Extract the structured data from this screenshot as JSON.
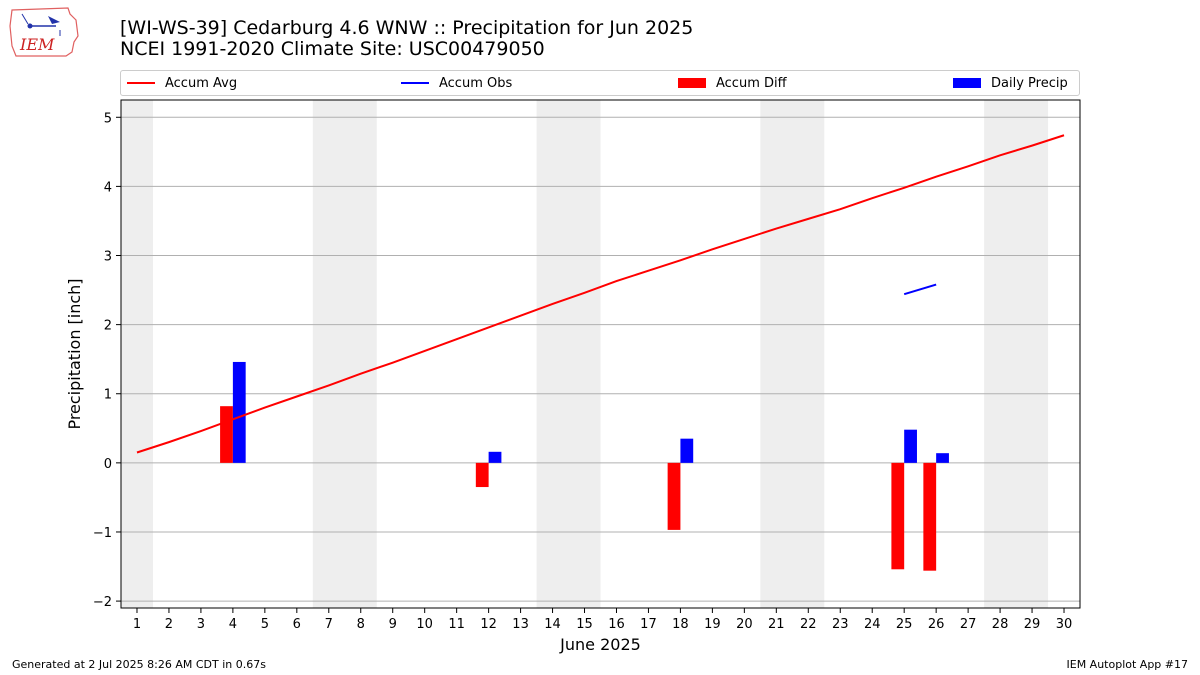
{
  "header": {
    "title_line1": "[WI-WS-39] Cedarburg 4.6 WNW :: Precipitation for Jun 2025",
    "title_line2": "NCEI 1991-2020 Climate Site: USC00479050",
    "logo_text": "IEM"
  },
  "legend": {
    "accum_avg": "Accum Avg",
    "accum_obs": "Accum Obs",
    "accum_diff": "Accum Diff",
    "daily_precip": "Daily Precip"
  },
  "footer": {
    "generated": "Generated at 2 Jul 2025 8:26 AM CDT in 0.67s",
    "app": "IEM Autoplot App #17"
  },
  "colors": {
    "avg": "#ff0000",
    "obs": "#0000ff",
    "diff": "#ff0000",
    "daily": "#0000ff",
    "weekend_shade": "#eeeeee",
    "grid": "#b0b0b0"
  },
  "chart_data": {
    "type": "bar",
    "xlabel": "June 2025",
    "ylabel": "Precipitation [inch]",
    "ylim": [
      -2.1,
      5.25
    ],
    "xlim": [
      0.5,
      30.5
    ],
    "yticks": [
      -2,
      -1,
      0,
      1,
      2,
      3,
      4,
      5
    ],
    "ytick_labels": [
      "−2",
      "−1",
      "0",
      "1",
      "2",
      "3",
      "4",
      "5"
    ],
    "categories": [
      "1",
      "2",
      "3",
      "4",
      "5",
      "6",
      "7",
      "8",
      "9",
      "10",
      "11",
      "12",
      "13",
      "14",
      "15",
      "16",
      "17",
      "18",
      "19",
      "20",
      "21",
      "22",
      "23",
      "24",
      "25",
      "26",
      "27",
      "28",
      "29",
      "30"
    ],
    "grid": true,
    "shaded_days": [
      [
        0.5,
        1.5
      ],
      [
        6.5,
        8.5
      ],
      [
        13.5,
        15.5
      ],
      [
        20.5,
        22.5
      ],
      [
        27.5,
        29.5
      ]
    ],
    "series": [
      {
        "name": "Accum Avg",
        "kind": "line",
        "x": [
          1,
          2,
          3,
          4,
          5,
          6,
          7,
          8,
          9,
          10,
          11,
          12,
          13,
          14,
          15,
          16,
          17,
          18,
          19,
          20,
          21,
          22,
          23,
          24,
          25,
          26,
          27,
          28,
          29,
          30
        ],
        "values": [
          0.15,
          0.3,
          0.46,
          0.63,
          0.8,
          0.96,
          1.12,
          1.29,
          1.45,
          1.62,
          1.79,
          1.96,
          2.13,
          2.3,
          2.46,
          2.63,
          2.78,
          2.93,
          3.09,
          3.24,
          3.39,
          3.53,
          3.67,
          3.83,
          3.98,
          4.14,
          4.29,
          4.45,
          4.59,
          4.74
        ]
      },
      {
        "name": "Accum Obs",
        "kind": "line",
        "x": [
          25,
          26
        ],
        "values": [
          2.44,
          2.58
        ]
      },
      {
        "name": "Accum Diff",
        "kind": "bar",
        "x": [
          4,
          12,
          18,
          25,
          26
        ],
        "values": [
          0.82,
          -0.35,
          -0.97,
          -1.54,
          -1.56
        ]
      },
      {
        "name": "Daily Precip",
        "kind": "bar",
        "x": [
          4,
          12,
          18,
          25,
          26
        ],
        "values": [
          1.46,
          0.16,
          0.35,
          0.48,
          0.14
        ]
      }
    ]
  }
}
